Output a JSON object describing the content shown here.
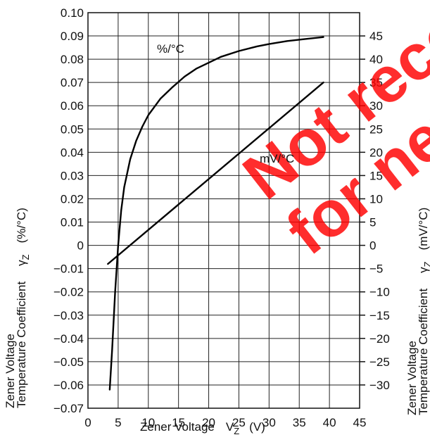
{
  "chart_data": {
    "type": "line",
    "title": "",
    "xlabel": {
      "text": "Zener Voltage",
      "symbol": "V",
      "subscript": "Z",
      "unit": "(V)"
    },
    "ylabel_left": {
      "line1": "Zener Voltage",
      "line2": "Temperature Coefficient",
      "symbol": "γ",
      "subscript": "Z",
      "unit": "(%/°C)"
    },
    "ylabel_right": {
      "line1": "Zener Voltage",
      "line2": "Temperature Coefficient",
      "symbol": "γ",
      "subscript": "Z",
      "unit": "(mV/°C)"
    },
    "xlim": [
      0,
      45
    ],
    "ylim_left": [
      -0.07,
      0.1
    ],
    "ylim_right": [
      -35,
      50
    ],
    "grid": true,
    "x_ticks": [
      "0",
      "5",
      "10",
      "15",
      "20",
      "25",
      "30",
      "35",
      "40",
      "45"
    ],
    "y_left_ticks": [
      "0.10",
      "0.09",
      "0.08",
      "0.07",
      "0.06",
      "0.05",
      "0.04",
      "0.03",
      "0.02",
      "0.01",
      "0",
      "−0.01",
      "−0.02",
      "−0.03",
      "−0.04",
      "−0.05",
      "−0.06",
      "−0.07"
    ],
    "y_right_ticks": [
      "45",
      "40",
      "35",
      "30",
      "25",
      "20",
      "15",
      "10",
      "5",
      "0",
      "−5",
      "−10",
      "−15",
      "−20",
      "−25",
      "−30"
    ],
    "series": [
      {
        "name": "%/°C",
        "axis": "left",
        "x": [
          3.6,
          4.0,
          4.5,
          5.0,
          5.5,
          6.0,
          7.0,
          8.0,
          9.0,
          10.0,
          12.0,
          14.0,
          16.0,
          18.0,
          20.0,
          22.0,
          25.0,
          28.0,
          30.0,
          33.0,
          36.0,
          39.0
        ],
        "y": [
          -0.062,
          -0.045,
          -0.02,
          0.0,
          0.015,
          0.025,
          0.037,
          0.045,
          0.051,
          0.056,
          0.063,
          0.068,
          0.0725,
          0.076,
          0.0785,
          0.081,
          0.0835,
          0.0855,
          0.0865,
          0.0878,
          0.0887,
          0.0895
        ]
      },
      {
        "name": "mV/°C",
        "axis": "right",
        "x": [
          3.3,
          39.0
        ],
        "y": [
          -4.0,
          35.0
        ]
      }
    ]
  },
  "watermark": {
    "line1": "Not recommended",
    "line2": "for new design",
    "color": "#ff0000"
  }
}
